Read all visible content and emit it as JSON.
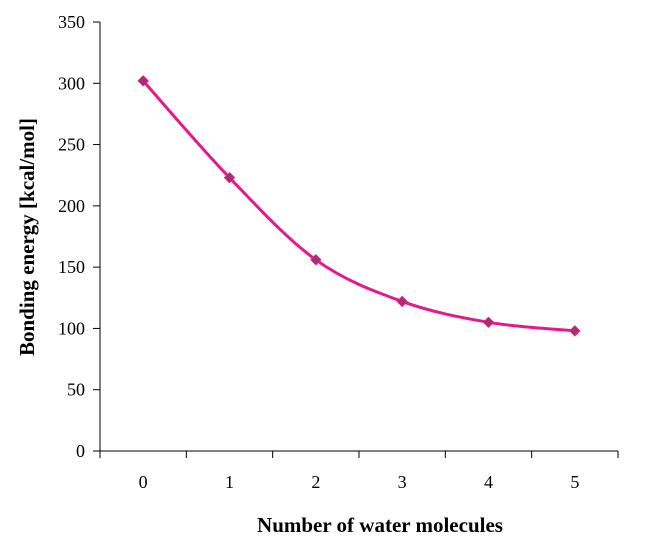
{
  "chart_data": {
    "type": "line",
    "title": "",
    "xlabel": "Number of water molecules",
    "ylabel": "Bonding energy [kcal/mol]",
    "categories": [
      "0",
      "1",
      "2",
      "3",
      "4",
      "5"
    ],
    "x": [
      0,
      1,
      2,
      3,
      4,
      5
    ],
    "series": [
      {
        "values": [
          302,
          223,
          156,
          122,
          105,
          98
        ],
        "color": "#e6198c",
        "marker_color": "#a0326e",
        "marker": "diamond",
        "smooth": true
      }
    ],
    "ylim": [
      0,
      350
    ],
    "yticks": [
      0,
      50,
      100,
      150,
      200,
      250,
      300,
      350
    ],
    "grid": false,
    "legend": "none"
  }
}
